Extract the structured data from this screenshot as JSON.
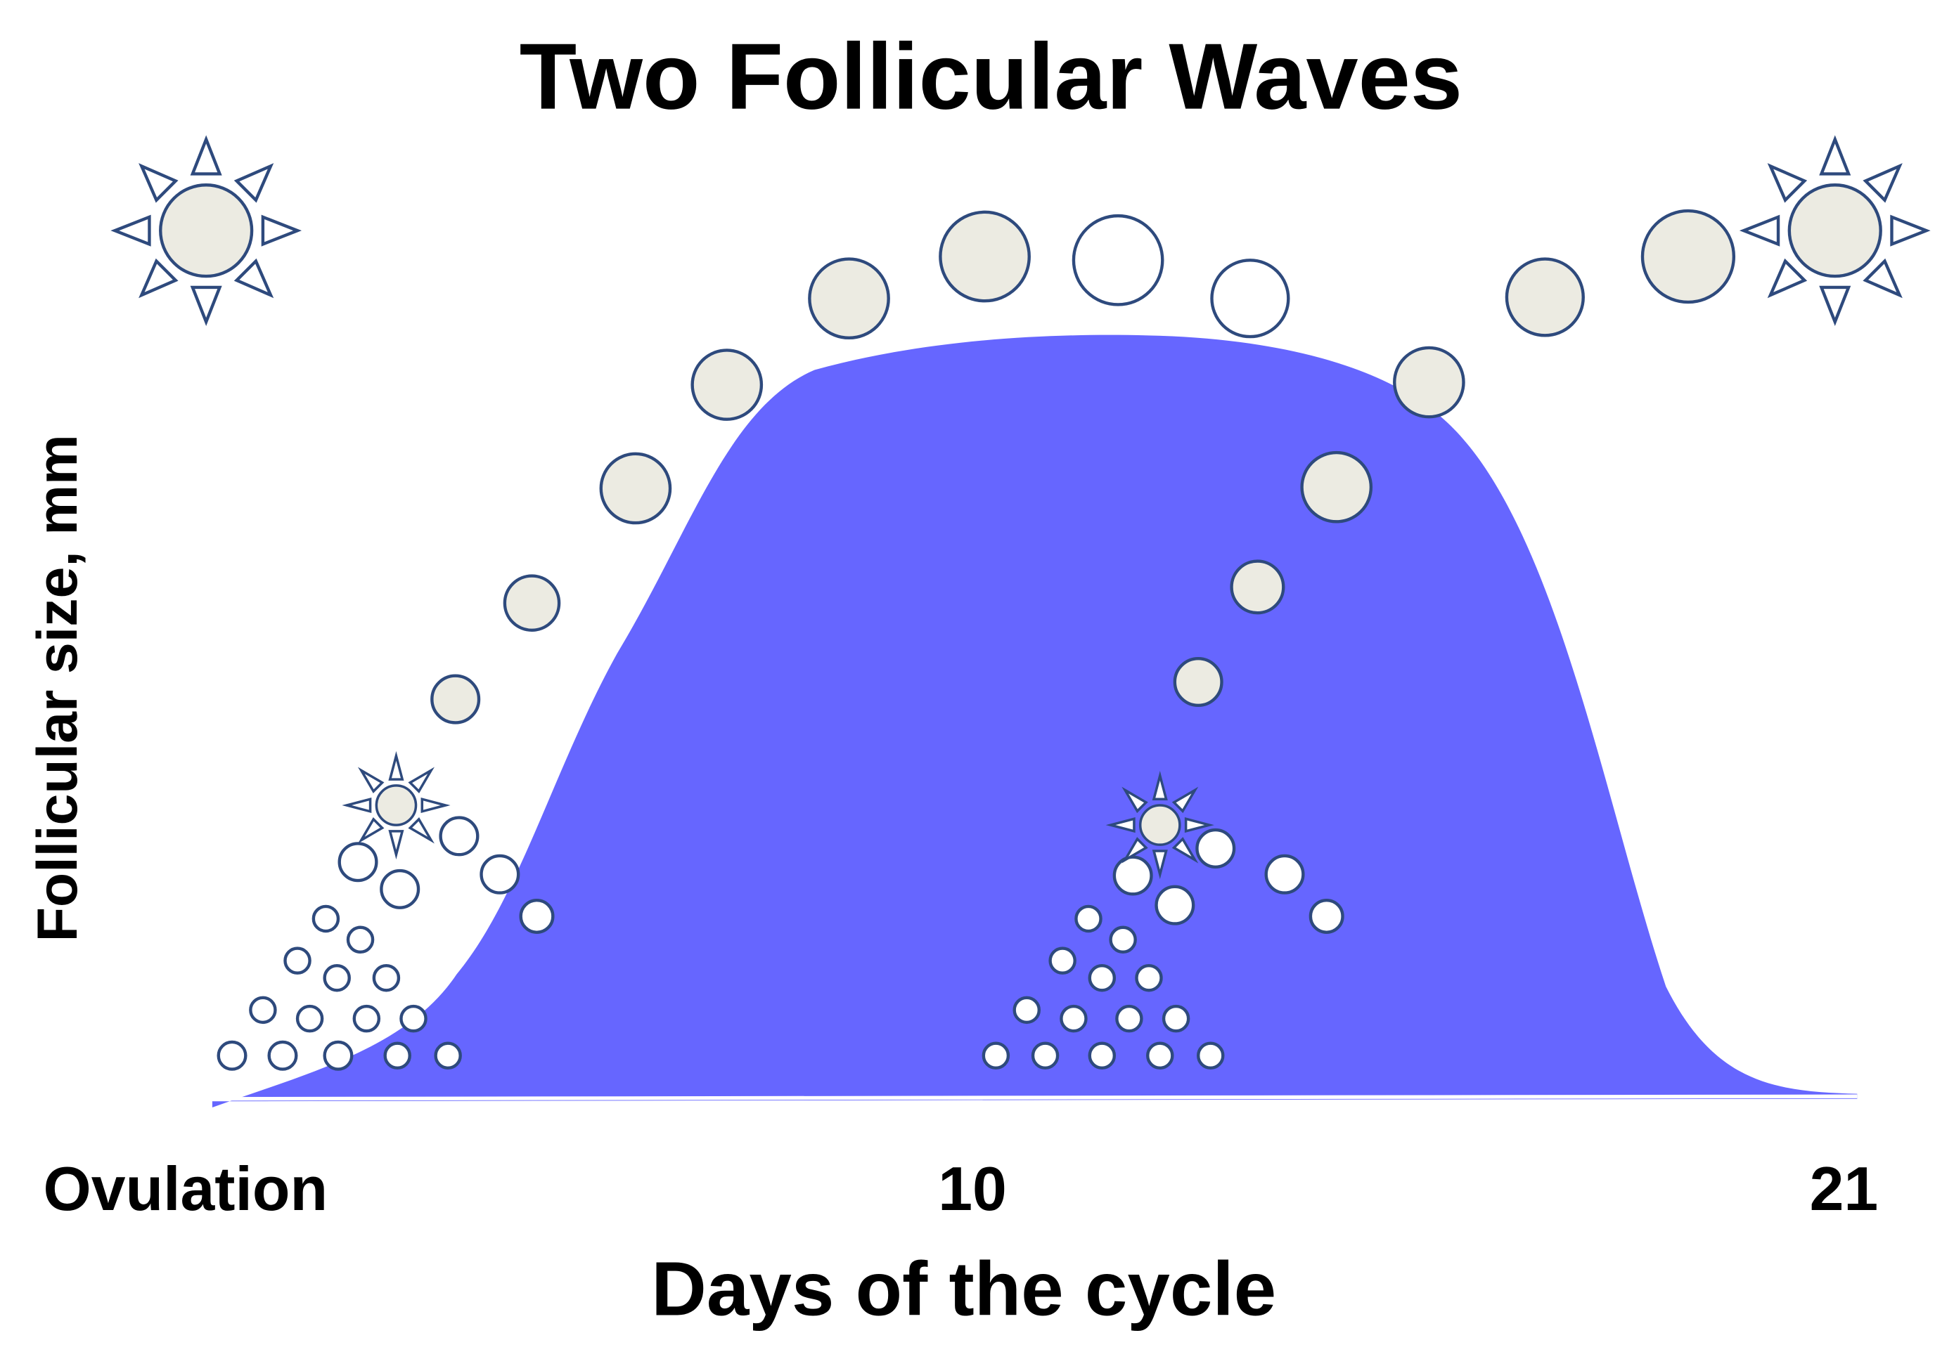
{
  "title": "Two Follicular Waves",
  "y_axis_label": "Follicular size, mm",
  "x_axis": {
    "labels": [
      "Ovulation",
      "10",
      "21"
    ],
    "title": "Days of the cycle"
  }
}
